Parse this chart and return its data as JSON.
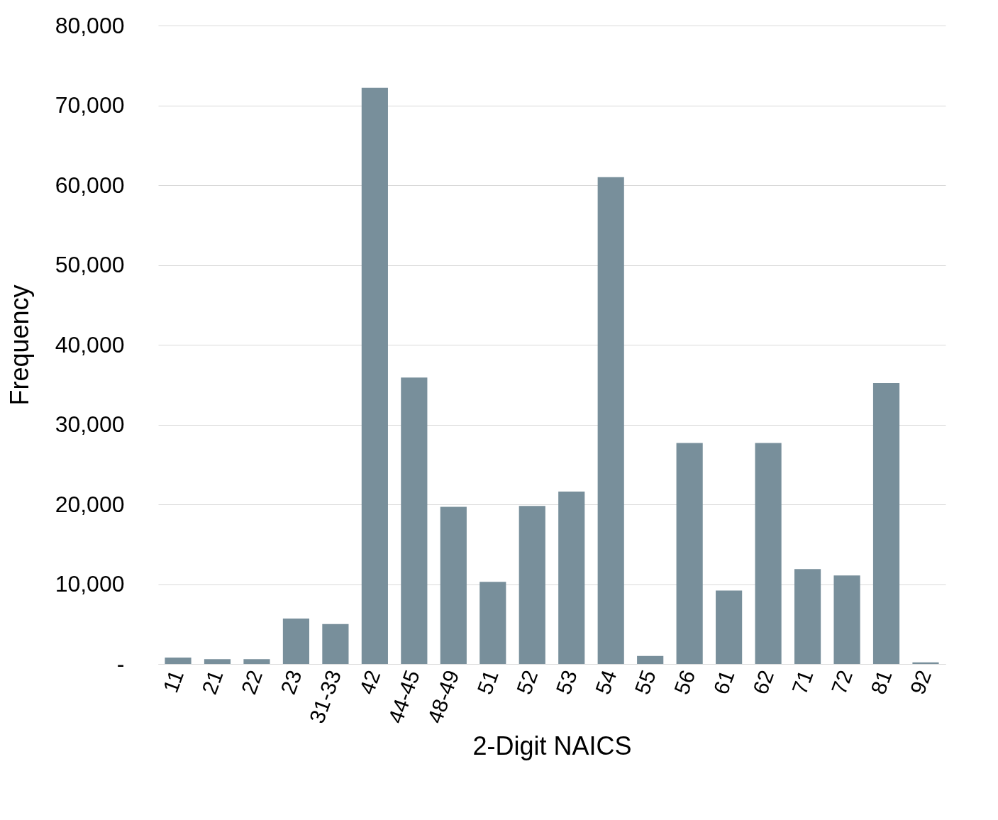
{
  "chart_data": {
    "type": "bar",
    "xlabel": "2-Digit NAICS",
    "ylabel": "Frequency",
    "categories": [
      "11",
      "21",
      "22",
      "23",
      "31-33",
      "42",
      "44-45",
      "48-49",
      "51",
      "52",
      "53",
      "54",
      "55",
      "56",
      "61",
      "62",
      "71",
      "72",
      "81",
      "92"
    ],
    "values": [
      800,
      600,
      600,
      5700,
      5000,
      72200,
      35900,
      19700,
      10300,
      19800,
      21600,
      61000,
      1000,
      27700,
      9200,
      27700,
      11900,
      11100,
      35200,
      200
    ],
    "color": "#788f9b",
    "ylim": [
      0,
      80000
    ],
    "yticks": [
      {
        "value": 0,
        "label": "-"
      },
      {
        "value": 10000,
        "label": "10,000"
      },
      {
        "value": 20000,
        "label": "20,000"
      },
      {
        "value": 30000,
        "label": "30,000"
      },
      {
        "value": 40000,
        "label": "40,000"
      },
      {
        "value": 50000,
        "label": "50,000"
      },
      {
        "value": 60000,
        "label": "60,000"
      },
      {
        "value": 70000,
        "label": "70,000"
      },
      {
        "value": 80000,
        "label": "80,000"
      }
    ],
    "grid": "y"
  }
}
